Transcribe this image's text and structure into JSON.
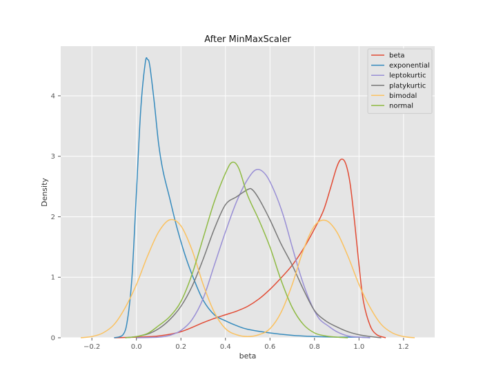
{
  "chart_data": {
    "type": "line",
    "title": "After MinMaxScaler",
    "xlabel": "beta",
    "ylabel": "Density",
    "xlim": [
      -0.34,
      1.34
    ],
    "ylim": [
      0,
      4.82
    ],
    "xticks": [
      -0.2,
      0.0,
      0.2,
      0.4,
      0.6,
      0.8,
      1.0,
      1.2
    ],
    "xtick_labels": [
      "−0.2",
      "0.0",
      "0.2",
      "0.4",
      "0.6",
      "0.8",
      "1.0",
      "1.2"
    ],
    "yticks": [
      0,
      1,
      2,
      3,
      4
    ],
    "ytick_labels": [
      "0",
      "1",
      "2",
      "3",
      "4"
    ],
    "grid": true,
    "legend_position": "top-right",
    "series": [
      {
        "name": "beta",
        "color": "#E24A33",
        "points": [
          [
            -0.1,
            0
          ],
          [
            0.0,
            0.01
          ],
          [
            0.1,
            0.03
          ],
          [
            0.2,
            0.1
          ],
          [
            0.3,
            0.25
          ],
          [
            0.35,
            0.32
          ],
          [
            0.4,
            0.38
          ],
          [
            0.45,
            0.44
          ],
          [
            0.5,
            0.52
          ],
          [
            0.55,
            0.64
          ],
          [
            0.6,
            0.8
          ],
          [
            0.65,
            0.99
          ],
          [
            0.7,
            1.2
          ],
          [
            0.75,
            1.47
          ],
          [
            0.8,
            1.8
          ],
          [
            0.84,
            2.1
          ],
          [
            0.87,
            2.45
          ],
          [
            0.9,
            2.82
          ],
          [
            0.92,
            2.95
          ],
          [
            0.94,
            2.88
          ],
          [
            0.96,
            2.55
          ],
          [
            0.98,
            1.92
          ],
          [
            1.0,
            1.2
          ],
          [
            1.02,
            0.6
          ],
          [
            1.05,
            0.2
          ],
          [
            1.08,
            0.05
          ],
          [
            1.12,
            0
          ]
        ]
      },
      {
        "name": "exponential",
        "color": "#348ABD",
        "points": [
          [
            -0.1,
            0
          ],
          [
            -0.06,
            0.05
          ],
          [
            -0.04,
            0.3
          ],
          [
            -0.02,
            1.0
          ],
          [
            0.0,
            2.4
          ],
          [
            0.02,
            3.8
          ],
          [
            0.04,
            4.55
          ],
          [
            0.05,
            4.6
          ],
          [
            0.06,
            4.5
          ],
          [
            0.08,
            3.9
          ],
          [
            0.1,
            3.2
          ],
          [
            0.12,
            2.75
          ],
          [
            0.15,
            2.3
          ],
          [
            0.18,
            1.85
          ],
          [
            0.22,
            1.35
          ],
          [
            0.26,
            0.95
          ],
          [
            0.3,
            0.62
          ],
          [
            0.35,
            0.38
          ],
          [
            0.4,
            0.28
          ],
          [
            0.45,
            0.2
          ],
          [
            0.5,
            0.14
          ],
          [
            0.6,
            0.08
          ],
          [
            0.7,
            0.04
          ],
          [
            0.8,
            0.02
          ],
          [
            0.9,
            0.01
          ],
          [
            1.0,
            0.01
          ],
          [
            1.05,
            0
          ]
        ]
      },
      {
        "name": "leptokurtic",
        "color": "#988ED5",
        "points": [
          [
            0.0,
            0
          ],
          [
            0.1,
            0.01
          ],
          [
            0.15,
            0.04
          ],
          [
            0.2,
            0.12
          ],
          [
            0.25,
            0.3
          ],
          [
            0.3,
            0.65
          ],
          [
            0.35,
            1.2
          ],
          [
            0.4,
            1.75
          ],
          [
            0.45,
            2.25
          ],
          [
            0.5,
            2.62
          ],
          [
            0.54,
            2.78
          ],
          [
            0.58,
            2.7
          ],
          [
            0.62,
            2.42
          ],
          [
            0.66,
            2.02
          ],
          [
            0.7,
            1.5
          ],
          [
            0.74,
            1.0
          ],
          [
            0.78,
            0.6
          ],
          [
            0.82,
            0.32
          ],
          [
            0.86,
            0.2
          ],
          [
            0.9,
            0.1
          ],
          [
            0.95,
            0.03
          ],
          [
            1.0,
            0.01
          ],
          [
            1.05,
            0
          ]
        ]
      },
      {
        "name": "platykurtic",
        "color": "#777777",
        "points": [
          [
            -0.05,
            0
          ],
          [
            0.0,
            0.02
          ],
          [
            0.05,
            0.06
          ],
          [
            0.1,
            0.15
          ],
          [
            0.15,
            0.3
          ],
          [
            0.2,
            0.52
          ],
          [
            0.25,
            0.85
          ],
          [
            0.3,
            1.3
          ],
          [
            0.35,
            1.8
          ],
          [
            0.4,
            2.2
          ],
          [
            0.45,
            2.33
          ],
          [
            0.5,
            2.45
          ],
          [
            0.52,
            2.45
          ],
          [
            0.55,
            2.3
          ],
          [
            0.6,
            1.95
          ],
          [
            0.65,
            1.55
          ],
          [
            0.7,
            1.2
          ],
          [
            0.75,
            0.8
          ],
          [
            0.8,
            0.45
          ],
          [
            0.85,
            0.28
          ],
          [
            0.9,
            0.18
          ],
          [
            0.95,
            0.1
          ],
          [
            1.0,
            0.05
          ],
          [
            1.05,
            0.02
          ],
          [
            1.1,
            0
          ]
        ]
      },
      {
        "name": "bimodal",
        "color": "#FBC15E",
        "points": [
          [
            -0.25,
            0
          ],
          [
            -0.2,
            0.02
          ],
          [
            -0.15,
            0.08
          ],
          [
            -0.1,
            0.22
          ],
          [
            -0.05,
            0.5
          ],
          [
            0.0,
            0.88
          ],
          [
            0.05,
            1.35
          ],
          [
            0.1,
            1.75
          ],
          [
            0.15,
            1.95
          ],
          [
            0.2,
            1.85
          ],
          [
            0.25,
            1.45
          ],
          [
            0.3,
            0.88
          ],
          [
            0.35,
            0.42
          ],
          [
            0.4,
            0.15
          ],
          [
            0.45,
            0.05
          ],
          [
            0.5,
            0.02
          ],
          [
            0.55,
            0.05
          ],
          [
            0.6,
            0.15
          ],
          [
            0.65,
            0.42
          ],
          [
            0.7,
            0.88
          ],
          [
            0.75,
            1.45
          ],
          [
            0.8,
            1.85
          ],
          [
            0.85,
            1.94
          ],
          [
            0.9,
            1.75
          ],
          [
            0.95,
            1.35
          ],
          [
            1.0,
            0.88
          ],
          [
            1.05,
            0.5
          ],
          [
            1.1,
            0.22
          ],
          [
            1.15,
            0.08
          ],
          [
            1.2,
            0.02
          ],
          [
            1.25,
            0
          ]
        ]
      },
      {
        "name": "normal",
        "color": "#8EBA42",
        "points": [
          [
            -0.05,
            0
          ],
          [
            0.0,
            0.02
          ],
          [
            0.05,
            0.07
          ],
          [
            0.1,
            0.2
          ],
          [
            0.15,
            0.35
          ],
          [
            0.2,
            0.6
          ],
          [
            0.25,
            1.05
          ],
          [
            0.3,
            1.65
          ],
          [
            0.35,
            2.25
          ],
          [
            0.4,
            2.72
          ],
          [
            0.43,
            2.9
          ],
          [
            0.46,
            2.8
          ],
          [
            0.5,
            2.35
          ],
          [
            0.55,
            1.95
          ],
          [
            0.6,
            1.5
          ],
          [
            0.65,
            0.95
          ],
          [
            0.7,
            0.5
          ],
          [
            0.75,
            0.22
          ],
          [
            0.8,
            0.08
          ],
          [
            0.85,
            0.03
          ],
          [
            0.9,
            0.01
          ],
          [
            0.95,
            0
          ]
        ]
      }
    ]
  }
}
